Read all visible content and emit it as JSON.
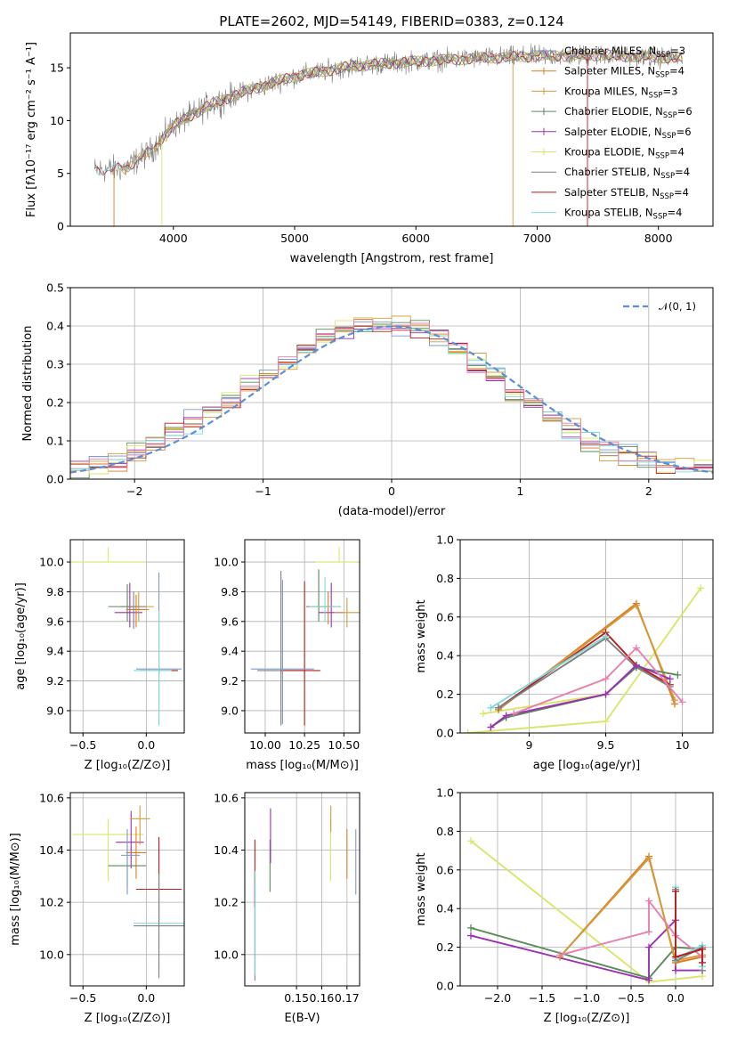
{
  "figure_title": "PLATE=2602, MJD=54149, FIBERID=0383, z=0.124",
  "colors": {
    "Chabrier MILES": "#7b9cc4",
    "Salpeter MILES": "#e07a21",
    "Kroupa MILES": "#d49a3a",
    "Chabrier ELODIE": "#5b8a5b",
    "Salpeter ELODIE": "#9b30b5",
    "Kroupa ELODIE": "#d9e66a",
    "Chabrier STELIB": "#808080",
    "Salpeter STELIB": "#b81c1c",
    "Kroupa STELIB": "#7fd8d8",
    "gaussian": "#5b8fd6",
    "data": "#808080"
  },
  "chart_data": [
    {
      "type": "line",
      "title": "",
      "xlabel": "wavelength [Angstrom, rest frame]",
      "ylabel": "Flux [fλ10⁻¹⁷ erg cm⁻² s⁻¹ A⁻¹]",
      "xlim": [
        3150,
        8450
      ],
      "ylim": [
        0,
        18.3
      ],
      "xticks": [
        4000,
        5000,
        6000,
        7000,
        8000
      ],
      "yticks": [
        0,
        5,
        10,
        15
      ],
      "grid": false,
      "legend": "top-right",
      "continuum": {
        "x": [
          3350,
          3600,
          3800,
          4000,
          4300,
          4600,
          5000,
          5500,
          6000,
          6500,
          7000,
          7500,
          8000,
          8200
        ],
        "y": [
          5.3,
          5.5,
          7.0,
          9.5,
          11.5,
          12.8,
          14.2,
          15.2,
          15.6,
          15.9,
          16.1,
          16.2,
          16.0,
          15.9
        ]
      },
      "series": [
        {
          "name": "Chabrier MILES, N_SSP=3"
        },
        {
          "name": "Salpeter MILES, N_SSP=4"
        },
        {
          "name": "Kroupa MILES, N_SSP=3"
        },
        {
          "name": "Chabrier ELODIE, N_SSP=6"
        },
        {
          "name": "Salpeter ELODIE, N_SSP=6"
        },
        {
          "name": "Kroupa ELODIE, N_SSP=4"
        },
        {
          "name": "Chabrier STELIB, N_SSP=4"
        },
        {
          "name": "Salpeter STELIB, N_SSP=4"
        },
        {
          "name": "Kroupa STELIB, N_SSP=4"
        }
      ]
    },
    {
      "type": "line",
      "title": "",
      "xlabel": "(data-model)/error",
      "ylabel": "Normed distribution",
      "xlim": [
        -2.5,
        2.5
      ],
      "ylim": [
        0,
        0.5
      ],
      "xticks": [
        -2,
        -1,
        0,
        1,
        2
      ],
      "xtick_labels": [
        "−2",
        "−1",
        "0",
        "1",
        "2"
      ],
      "yticks": [
        0.0,
        0.1,
        0.2,
        0.3,
        0.4,
        0.5
      ],
      "grid": true,
      "legend": "top-right",
      "gaussian_label": "𝒩(0, 1)",
      "hist_base": [
        0.03,
        0.04,
        0.05,
        0.07,
        0.09,
        0.12,
        0.15,
        0.18,
        0.21,
        0.24,
        0.28,
        0.31,
        0.34,
        0.37,
        0.39,
        0.4,
        0.41,
        0.4,
        0.39,
        0.37,
        0.34,
        0.31,
        0.27,
        0.23,
        0.2,
        0.16,
        0.13,
        0.1,
        0.08,
        0.06,
        0.05,
        0.04,
        0.03,
        0.03
      ]
    },
    {
      "type": "scatter",
      "xlabel": "Z [log₁₀(Z/Z⊙)]",
      "ylabel": "age  [log₁₀(age/yr)]",
      "xlim": [
        -0.6,
        0.3
      ],
      "ylim": [
        8.85,
        10.15
      ],
      "xticks": [
        -0.5,
        0.0
      ],
      "xtick_labels": [
        "−0.5",
        "0.0"
      ],
      "yticks": [
        9.0,
        9.2,
        9.4,
        9.6,
        9.8,
        10.0
      ],
      "points": [
        {
          "s": "Kroupa ELODIE",
          "x": -0.3,
          "y": 10.0,
          "xl": 0.3,
          "xh": 0.3,
          "yl": 0.0,
          "yh": 0.1
        },
        {
          "s": "Chabrier ELODIE",
          "x": -0.15,
          "y": 9.7,
          "xl": 0.15,
          "xh": 0.05,
          "yl": 0.1,
          "yh": 0.15
        },
        {
          "s": "Salpeter ELODIE",
          "x": -0.13,
          "y": 9.66,
          "xl": 0.12,
          "xh": 0.1,
          "yl": 0.1,
          "yh": 0.2
        },
        {
          "s": "Kroupa MILES",
          "x": -0.06,
          "y": 9.7,
          "xl": 0.1,
          "xh": 0.12,
          "yl": 0.1,
          "yh": 0.1
        },
        {
          "s": "Salpeter MILES",
          "x": -0.08,
          "y": 9.68,
          "xl": 0.08,
          "xh": 0.1,
          "yl": 0.12,
          "yh": 0.1
        },
        {
          "s": "Chabrier STELIB",
          "x": -0.1,
          "y": 9.7,
          "xl": 0.1,
          "xh": 0.1,
          "yl": 0.15,
          "yh": 0.1
        },
        {
          "s": "Salpeter STELIB",
          "x": 0.1,
          "y": 9.27,
          "xl": 0.15,
          "xh": 0.15,
          "yl": 0.02,
          "yh": 0.02
        },
        {
          "s": "Chabrier MILES",
          "x": 0.1,
          "y": 9.28,
          "xl": 0.18,
          "xh": 0.18,
          "yl": 0.37,
          "yh": 0.65
        },
        {
          "s": "Kroupa STELIB",
          "x": 0.1,
          "y": 9.27,
          "xl": 0.2,
          "xh": 0.1,
          "yl": 0.37,
          "yh": 0.4
        }
      ]
    },
    {
      "type": "scatter",
      "xlabel": "mass [log₁₀(M/M⊙)]",
      "ylabel": "",
      "xlim": [
        9.87,
        10.6
      ],
      "ylim": [
        8.85,
        10.15
      ],
      "xticks": [
        10.0,
        10.25,
        10.5
      ],
      "xtick_labels": [
        "10.00",
        "10.25",
        "10.50"
      ],
      "yticks": [
        9.0,
        9.2,
        9.4,
        9.6,
        9.8,
        10.0
      ],
      "points": [
        {
          "s": "Kroupa ELODIE",
          "x": 10.47,
          "y": 10.0,
          "xl": 0.15,
          "xh": 0.12,
          "yl": 0.0,
          "yh": 0.1
        },
        {
          "s": "Chabrier ELODIE",
          "x": 10.34,
          "y": 9.7,
          "xl": 0.08,
          "xh": 0.08,
          "yl": 0.1,
          "yh": 0.25
        },
        {
          "s": "Salpeter ELODIE",
          "x": 10.42,
          "y": 9.66,
          "xl": 0.08,
          "xh": 0.08,
          "yl": 0.1,
          "yh": 0.2
        },
        {
          "s": "Kroupa MILES",
          "x": 10.52,
          "y": 9.66,
          "xl": 0.08,
          "xh": 0.08,
          "yl": 0.1,
          "yh": 0.1
        },
        {
          "s": "Salpeter MILES",
          "x": 10.4,
          "y": 9.7,
          "xl": 0.08,
          "xh": 0.08,
          "yl": 0.12,
          "yh": 0.1
        },
        {
          "s": "Chabrier STELIB",
          "x": 10.1,
          "y": 9.27,
          "xl": 0.15,
          "xh": 0.15,
          "yl": 0.37,
          "yh": 0.67
        },
        {
          "s": "Salpeter STELIB",
          "x": 10.25,
          "y": 9.27,
          "xl": 0.15,
          "xh": 0.1,
          "yl": 0.37,
          "yh": 0.6
        },
        {
          "s": "Chabrier MILES",
          "x": 10.11,
          "y": 9.28,
          "xl": 0.2,
          "xh": 0.2,
          "yl": 0.37,
          "yh": 0.6
        },
        {
          "s": "Kroupa STELIB",
          "x": 10.38,
          "y": 9.7,
          "xl": 0.1,
          "xh": 0.1,
          "yl": 0.1,
          "yh": 0.2
        }
      ]
    },
    {
      "type": "line",
      "xlabel": "age  [log₁₀(age/yr)]",
      "ylabel": "mass weight",
      "xlim": [
        8.55,
        10.2
      ],
      "ylim": [
        0,
        1.0
      ],
      "xticks": [
        9.0,
        9.5,
        10.0
      ],
      "yticks": [
        0.0,
        0.2,
        0.4,
        0.6,
        0.8,
        1.0
      ],
      "grid": true,
      "series": [
        {
          "s": "Kroupa ELODIE",
          "x": [
            8.6,
            9.5,
            10.12
          ],
          "y": [
            0.0,
            0.06,
            0.75
          ]
        },
        {
          "s": "Kroupa ELODIE",
          "x": [
            8.7,
            9.5
          ],
          "y": [
            0.1,
            0.2
          ]
        },
        {
          "s": "Salpeter MILES",
          "x": [
            8.8,
            9.7,
            9.95
          ],
          "y": [
            0.12,
            0.67,
            0.15
          ]
        },
        {
          "s": "Kroupa MILES",
          "x": [
            8.8,
            9.7,
            9.95
          ],
          "y": [
            0.12,
            0.66,
            0.17
          ]
        },
        {
          "s": "Salpeter STELIB",
          "x": [
            8.8,
            9.5,
            9.7,
            9.92
          ],
          "y": [
            0.13,
            0.52,
            0.35,
            0.25
          ]
        },
        {
          "s": "Chabrier STELIB",
          "x": [
            8.8,
            9.5,
            9.7,
            9.92
          ],
          "y": [
            0.13,
            0.49,
            0.34,
            0.24
          ]
        },
        {
          "s": "Kroupa STELIB",
          "x": [
            8.75,
            9.5
          ],
          "y": [
            0.13,
            0.5
          ]
        },
        {
          "s": "Chabrier ELODIE",
          "x": [
            8.75,
            8.85,
            9.5,
            9.7,
            9.97
          ],
          "y": [
            0.03,
            0.08,
            0.2,
            0.34,
            0.3
          ]
        },
        {
          "s": "Salpeter ELODIE",
          "x": [
            8.75,
            8.85,
            9.5,
            9.7,
            9.92
          ],
          "y": [
            0.03,
            0.09,
            0.2,
            0.35,
            0.28
          ]
        },
        {
          "s": "pink",
          "x": [
            8.9,
            9.5,
            9.7,
            10.0
          ],
          "y": [
            0.1,
            0.28,
            0.44,
            0.16
          ]
        }
      ]
    },
    {
      "type": "scatter",
      "xlabel": "Z [log₁₀(Z/Z⊙)]",
      "ylabel": "mass [log₁₀(M/M⊙)]",
      "xlim": [
        -0.6,
        0.3
      ],
      "ylim": [
        9.88,
        10.62
      ],
      "xticks": [
        -0.5,
        0.0
      ],
      "xtick_labels": [
        "−0.5",
        "0.0"
      ],
      "yticks": [
        10.0,
        10.2,
        10.4,
        10.6
      ],
      "points": [
        {
          "s": "Kroupa ELODIE",
          "x": -0.3,
          "y": 10.46,
          "xl": 0.28,
          "xh": 0.28,
          "yl": 0.18,
          "yh": 0.06
        },
        {
          "s": "Salpeter ELODIE",
          "x": -0.12,
          "y": 10.43,
          "xl": 0.12,
          "xh": 0.1,
          "yl": 0.1,
          "yh": 0.12
        },
        {
          "s": "Kroupa MILES",
          "x": -0.05,
          "y": 10.52,
          "xl": 0.08,
          "xh": 0.08,
          "yl": 0.1,
          "yh": 0.05
        },
        {
          "s": "Salpeter MILES",
          "x": -0.08,
          "y": 10.39,
          "xl": 0.08,
          "xh": 0.08,
          "yl": 0.1,
          "yh": 0.1
        },
        {
          "s": "Chabrier ELODIE",
          "x": -0.15,
          "y": 10.34,
          "xl": 0.15,
          "xh": 0.15,
          "yl": 0.08,
          "yh": 0.08
        },
        {
          "s": "Chabrier MILES",
          "x": -0.15,
          "y": 10.38,
          "xl": 0.05,
          "xh": 0.1,
          "yl": 0.15,
          "yh": 0.1
        },
        {
          "s": "Salpeter STELIB",
          "x": 0.1,
          "y": 10.25,
          "xl": 0.18,
          "xh": 0.18,
          "yl": 0.12,
          "yh": 0.2
        },
        {
          "s": "Kroupa STELIB",
          "x": 0.1,
          "y": 10.12,
          "xl": 0.2,
          "xh": 0.2,
          "yl": 0.18,
          "yh": 0.1
        },
        {
          "s": "Chabrier STELIB",
          "x": 0.1,
          "y": 10.11,
          "xl": 0.2,
          "xh": 0.2,
          "yl": 0.2,
          "yh": 0.2
        }
      ]
    },
    {
      "type": "scatter",
      "xlabel": "E(B-V)",
      "ylabel": "",
      "xlim": [
        0.1295,
        0.175
      ],
      "ylim": [
        9.88,
        10.62
      ],
      "xticks": [
        0.15,
        0.16,
        0.17
      ],
      "xtick_labels": [
        "0.15",
        "0.16",
        "0.17"
      ],
      "yticks": [
        10.0,
        10.2,
        10.4,
        10.6
      ],
      "points": [
        {
          "s": "Chabrier STELIB",
          "x": 0.1335,
          "y": 10.12,
          "yl": 0.22,
          "yh": 0.2
        },
        {
          "s": "Salpeter STELIB",
          "x": 0.1335,
          "y": 10.28,
          "yl": 0.1,
          "yh": 0.16
        },
        {
          "s": "Kroupa STELIB",
          "x": 0.1336,
          "y": 10.12,
          "yl": 0.2,
          "yh": 0.2
        },
        {
          "s": "Chabrier ELODIE",
          "x": 0.1395,
          "y": 10.34,
          "yl": 0.1,
          "yh": 0.1
        },
        {
          "s": "Salpeter ELODIE",
          "x": 0.1397,
          "y": 10.43,
          "yl": 0.08,
          "yh": 0.13
        },
        {
          "s": "Kroupa ELODIE",
          "x": 0.1635,
          "y": 10.46,
          "yl": 0.18,
          "yh": 0.06
        },
        {
          "s": "Kroupa MILES",
          "x": 0.1636,
          "y": 10.52,
          "yl": 0.05,
          "yh": 0.05
        },
        {
          "s": "Salpeter MILES",
          "x": 0.17,
          "y": 10.39,
          "yl": 0.1,
          "yh": 0.09
        },
        {
          "s": "Chabrier MILES",
          "x": 0.1735,
          "y": 10.38,
          "yl": 0.15,
          "yh": 0.1
        }
      ]
    },
    {
      "type": "line",
      "xlabel": "Z [log₁₀(Z/Z⊙)]",
      "ylabel": "mass weight",
      "xlim": [
        -2.42,
        0.42
      ],
      "ylim": [
        0,
        1.0
      ],
      "xticks": [
        -2.0,
        -1.5,
        -1.0,
        -0.5,
        0.0
      ],
      "xtick_labels": [
        "−2.0",
        "−1.5",
        "−1.0",
        "−0.5",
        "0.0"
      ],
      "yticks": [
        0.0,
        0.2,
        0.4,
        0.6,
        0.8,
        1.0
      ],
      "grid": true,
      "series": [
        {
          "s": "Kroupa ELODIE",
          "x": [
            -2.3,
            -0.3,
            0.3
          ],
          "y": [
            0.75,
            0.02,
            0.05
          ]
        },
        {
          "s": "Chabrier ELODIE",
          "x": [
            -2.3,
            -0.3,
            0.0,
            0.3
          ],
          "y": [
            0.3,
            0.04,
            0.2,
            0.19
          ]
        },
        {
          "s": "Salpeter ELODIE",
          "x": [
            -2.3,
            -0.3,
            -0.3,
            0.0,
            0.0,
            0.3
          ],
          "y": [
            0.26,
            0.03,
            0.2,
            0.34,
            0.08,
            0.08
          ]
        },
        {
          "s": "Salpeter MILES",
          "x": [
            -1.3,
            -0.3,
            0.0,
            0.3
          ],
          "y": [
            0.15,
            0.67,
            0.12,
            0.15
          ]
        },
        {
          "s": "Kroupa MILES",
          "x": [
            -1.3,
            -0.3,
            0.0,
            0.3
          ],
          "y": [
            0.15,
            0.66,
            0.13,
            0.16
          ]
        },
        {
          "s": "pink",
          "x": [
            -1.3,
            -0.3,
            -0.3,
            0.0,
            0.3
          ],
          "y": [
            0.16,
            0.28,
            0.44,
            0.26,
            0.15
          ]
        },
        {
          "s": "Chabrier STELIB",
          "x": [
            0.0,
            0.0,
            0.3,
            0.3
          ],
          "y": [
            0.5,
            0.13,
            0.2,
            0.08
          ]
        },
        {
          "s": "Kroupa STELIB",
          "x": [
            0.0,
            0.0,
            0.3,
            0.3
          ],
          "y": [
            0.51,
            0.14,
            0.21,
            0.1
          ]
        },
        {
          "s": "Salpeter STELIB",
          "x": [
            0.0,
            0.0,
            0.3,
            0.3
          ],
          "y": [
            0.49,
            0.15,
            0.19,
            0.12
          ]
        }
      ]
    }
  ]
}
